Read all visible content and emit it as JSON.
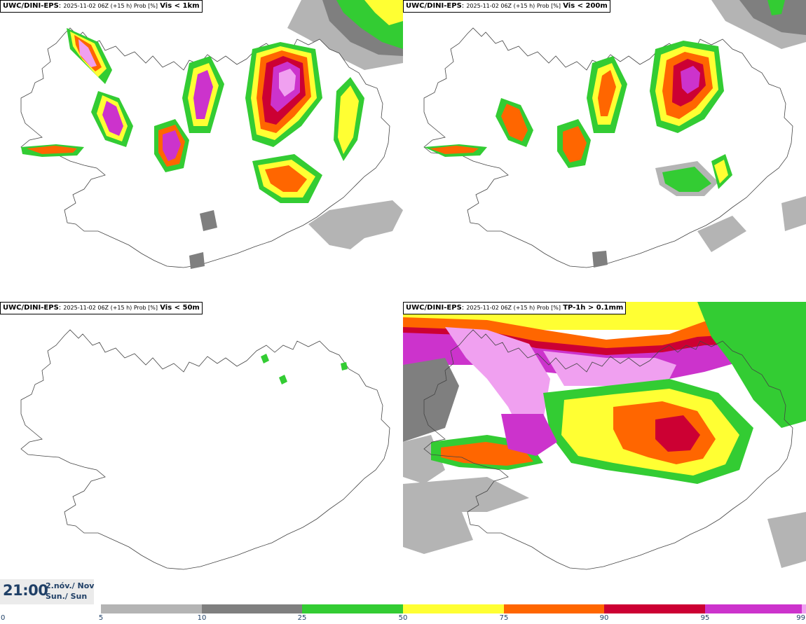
{
  "panels": [
    {
      "source": "UWC/DINI-EPS",
      "meta": "2025-11-02 06Z (+15 h) Prob [%]",
      "threshold": "Vis < 1km"
    },
    {
      "source": "UWC/DINI-EPS",
      "meta": "2025-11-02 06Z (+15 h) Prob [%]",
      "threshold": "Vis < 200m"
    },
    {
      "source": "UWC/DINI-EPS",
      "meta": "2025-11-02 06Z (+15 h) Prob [%]",
      "threshold": "Vis < 50m"
    },
    {
      "source": "UWC/DINI-EPS",
      "meta": "2025-11-02 06Z (+15 h) Prob [%]",
      "threshold": "TP-1h > 0.1mm"
    }
  ],
  "time": {
    "clock": "21:00",
    "date_line": "2.nóv./ Nov",
    "day_line": "Sun./ Sun"
  },
  "legend": {
    "ticks": [
      "0",
      "5",
      "10",
      "25",
      "50",
      "75",
      "90",
      "95",
      "99"
    ],
    "colors": {
      "p5": "#b4b4b4",
      "p10": "#7f7f7f",
      "p25": "#33cc33",
      "p50": "#ffff33",
      "p75": "#ff6600",
      "p90": "#cc0033",
      "p95": "#cc33cc",
      "p99": "#f0a0f0"
    }
  }
}
